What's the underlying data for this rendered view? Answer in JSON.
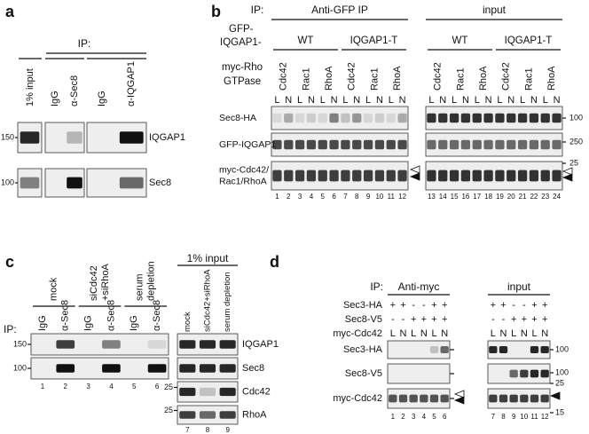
{
  "a": {
    "label": "a",
    "ip": "IP:",
    "columns": [
      "1% input",
      "IgG",
      "α-Sec8",
      "IgG",
      "α-IQGAP1"
    ],
    "rows": [
      "IQGAP1",
      "Sec8"
    ],
    "markers": [
      "150",
      "100"
    ]
  },
  "b": {
    "label": "b",
    "ip": "IP:",
    "groups": [
      "Anti-GFP IP",
      "input"
    ],
    "construct_label": [
      "GFP-",
      "IQGAP1-"
    ],
    "constructs": [
      "WT",
      "IQGAP1-T",
      "WT",
      "IQGAP1-T"
    ],
    "gtpase_label": [
      "myc-Rho",
      "GTPase"
    ],
    "gtpases": [
      "Cdc42",
      "Rac1",
      "RhoA",
      "Cdc42",
      "Rac1",
      "RhoA",
      "Cdc42",
      "Rac1",
      "RhoA",
      "Cdc42",
      "Rac1",
      "RhoA"
    ],
    "lanes": [
      "L",
      "N",
      "L",
      "N",
      "L",
      "N",
      "L",
      "N",
      "L",
      "N",
      "L",
      "N",
      "L",
      "N",
      "L",
      "N",
      "L",
      "N",
      "L",
      "N",
      "L",
      "N",
      "L",
      "N"
    ],
    "rows": [
      [
        "Sec8-HA"
      ],
      [
        "GFP-IQGAP1"
      ],
      [
        "myc-Cdc42/",
        "Rac1/RhoA"
      ]
    ],
    "markers": [
      "100",
      "250",
      "25"
    ],
    "lane_numbers": [
      1,
      2,
      3,
      4,
      5,
      6,
      7,
      8,
      9,
      10,
      11,
      12,
      13,
      14,
      15,
      16,
      17,
      18,
      19,
      20,
      21,
      22,
      23,
      24
    ]
  },
  "c": {
    "label": "c",
    "ip": "IP:",
    "conditions": [
      [
        "mock"
      ],
      [
        "siCdc42",
        "+siRhoA"
      ],
      [
        "serum",
        "depletion"
      ]
    ],
    "antibodies": [
      "IgG",
      "α-Sec8",
      "IgG",
      "α-Sec8",
      "IgG",
      "α-Sec8"
    ],
    "input_title": "1% input",
    "input_conditions": [
      "mock",
      "siCdc42+siRhoA",
      "serum depletion"
    ],
    "rows": [
      "IQGAP1",
      "Sec8",
      "Cdc42",
      "RhoA"
    ],
    "markers": [
      "150",
      "100",
      "25",
      "25"
    ],
    "lane_numbers": [
      1,
      2,
      3,
      4,
      5,
      6,
      7,
      8,
      9
    ]
  },
  "d": {
    "label": "d",
    "ip": "IP:",
    "groups": [
      "Anti-myc",
      "input"
    ],
    "conditions": [
      {
        "name": "Sec3-HA",
        "signs": [
          "+",
          "+",
          "-",
          "-",
          "+",
          "+",
          "+",
          "+",
          "-",
          "-",
          "+",
          "+"
        ]
      },
      {
        "name": "Sec8-V5",
        "signs": [
          "-",
          "-",
          "+",
          "+",
          "+",
          "+",
          "-",
          "-",
          "+",
          "+",
          "+",
          "+"
        ]
      },
      {
        "name": "myc-Cdc42",
        "signs": [
          "L",
          "N",
          "L",
          "N",
          "L",
          "N",
          "L",
          "N",
          "L",
          "N",
          "L",
          "N"
        ]
      }
    ],
    "rows": [
      "Sec3-HA",
      "Sec8-V5",
      "myc-Cdc42"
    ],
    "markers": [
      "100",
      "100",
      "25",
      "15"
    ],
    "lane_numbers": [
      1,
      2,
      3,
      4,
      5,
      6,
      7,
      8,
      9,
      10,
      11,
      12
    ]
  }
}
